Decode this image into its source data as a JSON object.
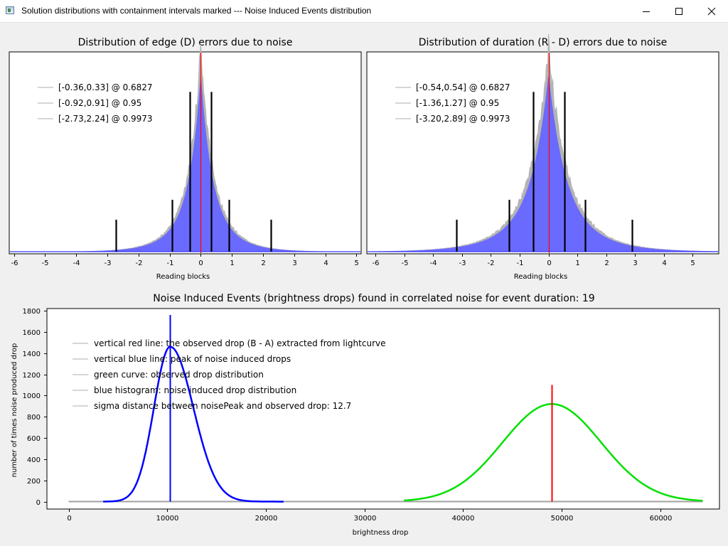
{
  "window": {
    "title": "Solution distributions with containment intervals marked --- Noise Induced Events distribution",
    "minimize_glyph": "minimize-icon",
    "maximize_glyph": "maximize-icon",
    "close_glyph": "close-icon"
  },
  "colors": {
    "histogram_blue": "#6a6aff",
    "envelope_gray": "#b4b4b4",
    "observed_red": "#ff0000",
    "noise_blue": "#0000ff",
    "observed_green": "#00e000",
    "baseline_gray": "#a0a0a0"
  },
  "chart_data": [
    {
      "type": "bar",
      "title": "Distribution of edge (D) errors due to noise",
      "xlabel": "Reading blocks",
      "ylabel": "",
      "xlim": [
        -6.15,
        5.15
      ],
      "xticks": [
        "-6",
        "-5",
        "-4",
        "-3",
        "-2",
        "-1",
        "0",
        "1",
        "2",
        "3",
        "4",
        "5"
      ],
      "xtick_values": [
        -6,
        -5,
        -4,
        -3,
        -2,
        -1,
        0,
        1,
        2,
        3,
        4,
        5
      ],
      "distribution": {
        "center": 0.0,
        "core_scale": 0.33,
        "tail_scale": 0.75,
        "core_weight": 0.65
      },
      "red_line_x": 0,
      "interval_markers": [
        {
          "x": -0.36,
          "height": 0.8
        },
        {
          "x": 0.33,
          "height": 0.8
        },
        {
          "x": -0.92,
          "height": 0.26
        },
        {
          "x": 0.91,
          "height": 0.26
        },
        {
          "x": -2.73,
          "height": 0.16
        },
        {
          "x": 2.24,
          "height": 0.16
        }
      ],
      "legend": [
        "[-0.36,0.33] @ 0.6827",
        "[-0.92,0.91] @ 0.95",
        "[-2.73,2.24] @ 0.9973"
      ]
    },
    {
      "type": "bar",
      "title": "Distribution of duration (R - D) errors due to noise",
      "xlabel": "Reading blocks",
      "ylabel": "",
      "xlim": [
        -6.3,
        5.9
      ],
      "xticks": [
        "-6",
        "-5",
        "-4",
        "-3",
        "-2",
        "-1",
        "0",
        "1",
        "2",
        "3",
        "4",
        "5"
      ],
      "xtick_values": [
        -6,
        -5,
        -4,
        -3,
        -2,
        -1,
        0,
        1,
        2,
        3,
        4,
        5
      ],
      "distribution": {
        "center": 0.0,
        "core_scale": 0.52,
        "tail_scale": 1.15,
        "core_weight": 0.62
      },
      "red_line_x": 0,
      "interval_markers": [
        {
          "x": -0.54,
          "height": 0.8
        },
        {
          "x": 0.54,
          "height": 0.8
        },
        {
          "x": -1.36,
          "height": 0.26
        },
        {
          "x": 1.27,
          "height": 0.26
        },
        {
          "x": -3.2,
          "height": 0.16
        },
        {
          "x": 2.89,
          "height": 0.16
        }
      ],
      "legend": [
        "[-0.54,0.54] @ 0.6827",
        "[-1.36,1.27] @ 0.95",
        "[-3.20,2.89] @ 0.9973"
      ]
    },
    {
      "type": "line",
      "title": "Noise Induced Events (brightness drops) found in correlated noise for event duration: 19",
      "xlabel": "brightness drop",
      "ylabel": "number of times noise produced drop",
      "xlim": [
        -2200,
        66000
      ],
      "ylim": [
        -70,
        1820
      ],
      "xticks": [
        "0",
        "10000",
        "20000",
        "30000",
        "40000",
        "50000",
        "60000"
      ],
      "xtick_values": [
        0,
        10000,
        20000,
        30000,
        40000,
        50000,
        60000
      ],
      "yticks": [
        "0",
        "200",
        "400",
        "600",
        "800",
        "1000",
        "1200",
        "1400",
        "1600",
        "1800"
      ],
      "ytick_values": [
        0,
        200,
        400,
        600,
        800,
        1000,
        1200,
        1400,
        1600,
        1800
      ],
      "series": [
        {
          "name": "noise induced drop distribution",
          "color": "blue",
          "peak_x": 10300,
          "peak_y": 1460,
          "sigma_left": 1650,
          "sigma_right": 2350,
          "x_range": [
            3500,
            21800
          ]
        },
        {
          "name": "observed drop distribution",
          "color": "green",
          "peak_x": 49000,
          "peak_y": 920,
          "sigma_left": 5000,
          "sigma_right": 5000,
          "x_range": [
            34000,
            64300
          ]
        }
      ],
      "baseline_range": [
        0,
        64300
      ],
      "vertical_lines": [
        {
          "name": "noise peak",
          "x": 10300,
          "y_top": 1760,
          "color": "blue"
        },
        {
          "name": "observed drop",
          "x": 49000,
          "y_top": 1100,
          "color": "red"
        }
      ],
      "legend": [
        "vertical red line: the observed drop (B - A) extracted from lightcurve",
        "vertical blue line: peak of noise induced drops",
        "green curve: observed drop distribution",
        "blue histogram: noise induced drop distribution",
        "sigma distance between noisePeak and observed drop: 12.7"
      ]
    }
  ]
}
